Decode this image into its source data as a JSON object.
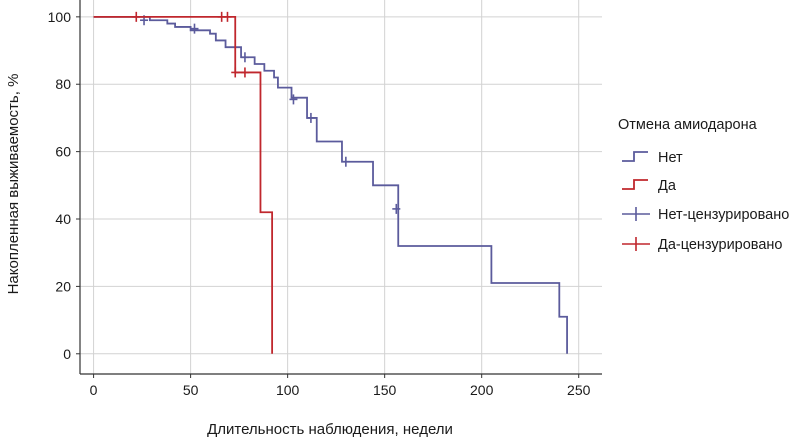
{
  "chart_data": {
    "type": "line",
    "subtype": "kaplan-meier-step",
    "title": "",
    "xlabel": "Длительность наблюдения, недели",
    "ylabel": "Накопленная выживаемость, %",
    "xlim": [
      -7,
      262
    ],
    "ylim": [
      -6,
      105
    ],
    "xticks": [
      0,
      50,
      100,
      150,
      200,
      250
    ],
    "yticks": [
      0,
      20,
      40,
      60,
      80,
      100
    ],
    "grid": true,
    "legend": {
      "title": "Отмена амиодарона",
      "placement": "right",
      "entries": [
        {
          "label": "Нет",
          "symbol": "step",
          "series": 0
        },
        {
          "label": "Да",
          "symbol": "step",
          "series": 1
        },
        {
          "label": "Нет-цензурировано",
          "symbol": "cross",
          "series": 0
        },
        {
          "label": "Да-цензурировано",
          "symbol": "cross",
          "series": 1
        }
      ]
    },
    "series": [
      {
        "name": "Нет",
        "color": "#5b5b9c",
        "steps": [
          [
            0,
            100
          ],
          [
            29,
            99
          ],
          [
            38,
            98
          ],
          [
            42,
            97
          ],
          [
            50,
            96
          ],
          [
            60,
            95
          ],
          [
            63,
            93
          ],
          [
            68,
            91
          ],
          [
            76,
            88
          ],
          [
            83,
            86
          ],
          [
            88,
            84
          ],
          [
            93,
            82
          ],
          [
            95,
            79
          ],
          [
            102,
            76
          ],
          [
            110,
            70
          ],
          [
            115,
            63
          ],
          [
            128,
            57
          ],
          [
            144,
            50
          ],
          [
            157,
            32
          ],
          [
            205,
            21
          ],
          [
            240,
            11
          ],
          [
            244,
            0
          ]
        ],
        "censored": [
          [
            26,
            99
          ],
          [
            52,
            96.5
          ],
          [
            78,
            88
          ],
          [
            103,
            75.5
          ],
          [
            112,
            70
          ],
          [
            130,
            57
          ],
          [
            156,
            43
          ]
        ]
      },
      {
        "name": "Да",
        "color": "#c0272d",
        "steps": [
          [
            0,
            100
          ],
          [
            73,
            83.5
          ],
          [
            86,
            42
          ],
          [
            92,
            0
          ]
        ],
        "censored": [
          [
            22,
            100
          ],
          [
            66,
            100
          ],
          [
            69,
            100
          ],
          [
            73,
            83.5
          ],
          [
            78,
            83.5
          ]
        ]
      }
    ]
  }
}
